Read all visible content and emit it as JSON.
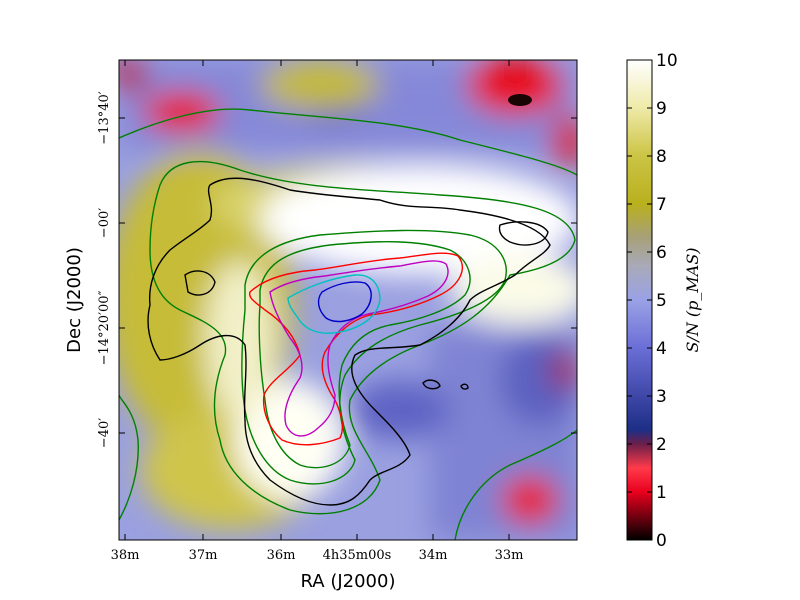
{
  "chart_data": {
    "type": "heatmap",
    "xlabel": "RA (J2000)",
    "ylabel": "Dec (J2000)",
    "x_ticks": [
      "38m",
      "37m",
      "36m",
      "4h35m00s",
      "34m",
      "33m"
    ],
    "y_ticks": [
      "−13°40′",
      "−00′",
      "−14°20′00″",
      "−40′"
    ],
    "colorbar": {
      "label": "S/N (p_MAS)",
      "ticks": [
        0,
        1,
        2,
        3,
        4,
        5,
        6,
        7,
        8,
        9,
        10
      ],
      "range": [
        0,
        10
      ],
      "stops": [
        {
          "v": 0,
          "c": "#000000"
        },
        {
          "v": 1.0,
          "c": "#e8001e"
        },
        {
          "v": 1.5,
          "c": "#ff3a4a"
        },
        {
          "v": 2.0,
          "c": "#6a1f4a"
        },
        {
          "v": 2.3,
          "c": "#1c2f86"
        },
        {
          "v": 3.0,
          "c": "#3f47a8"
        },
        {
          "v": 4.0,
          "c": "#6a6ed6"
        },
        {
          "v": 5.0,
          "c": "#9aa2e6"
        },
        {
          "v": 5.7,
          "c": "#a9a9b9"
        },
        {
          "v": 6.3,
          "c": "#a7a07a"
        },
        {
          "v": 7.0,
          "c": "#b9b01e"
        },
        {
          "v": 8.0,
          "c": "#cbc444"
        },
        {
          "v": 9.0,
          "c": "#eeeaa8"
        },
        {
          "v": 10.0,
          "c": "#ffffff"
        }
      ]
    },
    "contour_colors": [
      "#000000",
      "#008000",
      "#ff0000",
      "#c000c0",
      "#00c0c0",
      "#0000c8"
    ]
  }
}
